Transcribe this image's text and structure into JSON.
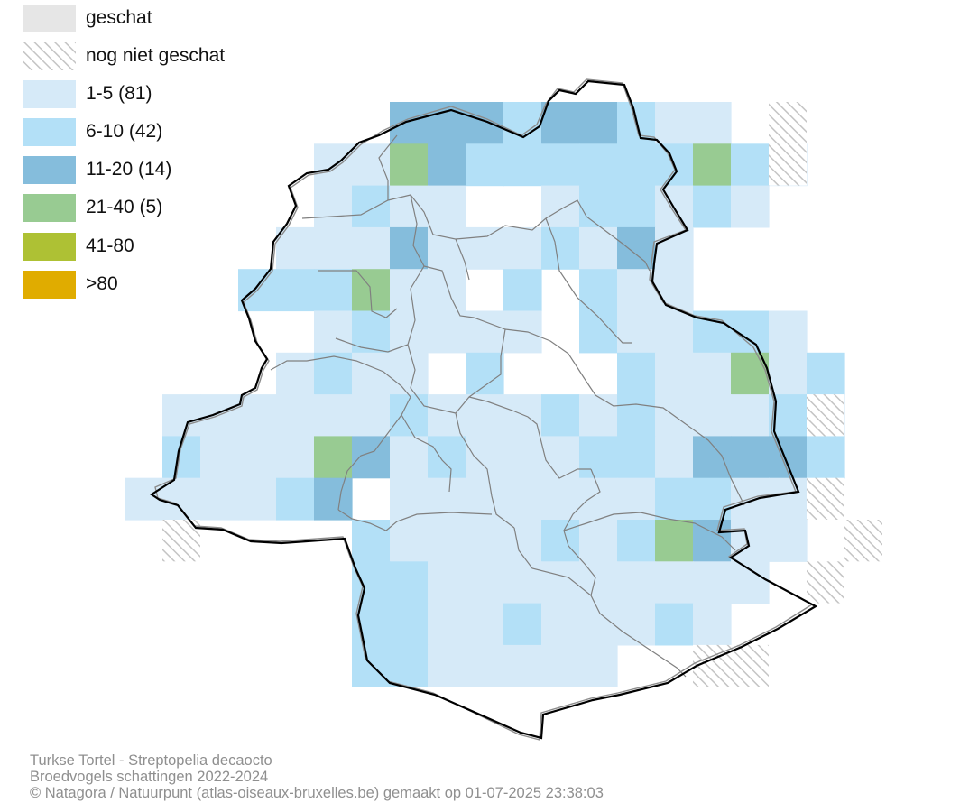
{
  "legend": {
    "items": [
      {
        "label": "geschat",
        "color": "#e6e6e6",
        "pattern": false
      },
      {
        "label": "nog niet geschat",
        "color": "#bdbdbd",
        "pattern": true
      },
      {
        "label": "1-5 (81)",
        "color": "#d6eaf8",
        "pattern": false
      },
      {
        "label": "6-10 (42)",
        "color": "#b3e0f7",
        "pattern": false
      },
      {
        "label": "11-20 (14)",
        "color": "#85bddc",
        "pattern": false
      },
      {
        "label": "21-40 (5)",
        "color": "#98cb92",
        "pattern": false
      },
      {
        "label": "41-80",
        "color": "#aec134",
        "pattern": false
      },
      {
        "label": ">80",
        "color": "#e0ac00",
        "pattern": false
      }
    ]
  },
  "caption": {
    "line1": "Turkse Tortel - Streptopelia decaocto",
    "line2": "Broedvogels schattingen 2022-2024",
    "line3": "© Natagora / Natuurpunt (atlas-oiseaux-bruxelles.be) gemaakt op 01-07-2025 23:38:03"
  },
  "map": {
    "grid": [
      "       2BBABBA..    ",
      "     ..CBAAAAAACA.  ",
      "     .A..  .AA.A.   ",
      "    ...B...A.B.     ",
      "   AAAC.. A A..     ",
      "     .A.... A..AA.  ",
      "    .A.. A   A..C.A ",
      " ......A...A.A...A. ",
      " A...CB.A...AA.BBBA ",
      "....AB .......AA..  ",
      "      A....A.ACB..  ",
      "      AA.........   ",
      "      AA..A...A.    ",
      "      AA.....       "
    ],
    "hatched": [
      {
        "row": 0,
        "col": 17
      },
      {
        "row": 1,
        "col": 17
      },
      {
        "row": 7,
        "col": 18
      },
      {
        "row": 9,
        "col": 18
      },
      {
        "row": 10,
        "col": 1
      },
      {
        "row": 10,
        "col": 19
      },
      {
        "row": 11,
        "col": 18
      },
      {
        "row": 13,
        "col": 15
      },
      {
        "row": 13,
        "col": 16
      }
    ]
  }
}
